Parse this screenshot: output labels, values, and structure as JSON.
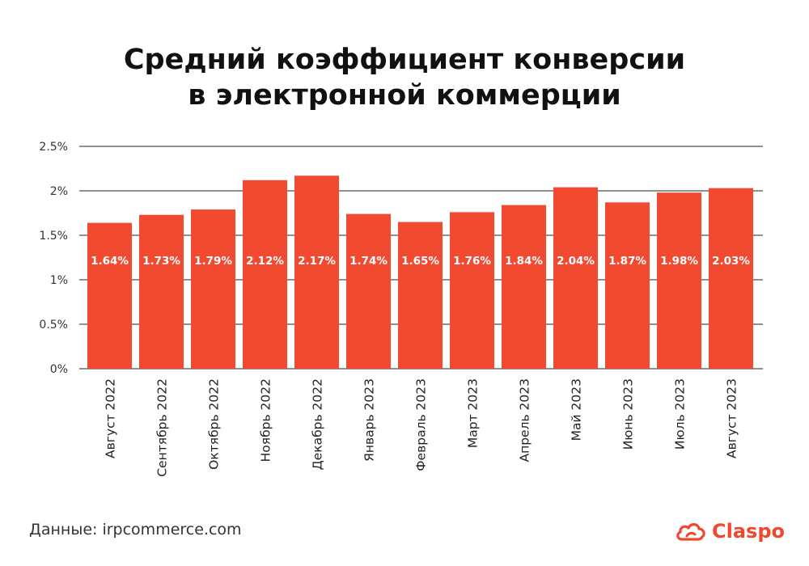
{
  "title_lines": [
    "Средний коэффициент конверсии",
    "в электронной коммерции"
  ],
  "source": "Данные: irpcommerce.com",
  "logo": {
    "text": "Claspo",
    "icon": "cloud-icon",
    "color": "#f1472f"
  },
  "colors": {
    "bar": "#f24a31",
    "label": "#ffffff",
    "grid": "#222222",
    "axis_text": "#333333"
  },
  "chart_data": {
    "type": "bar",
    "categories": [
      "Август 2022",
      "Сентябрь 2022",
      "Октябрь 2022",
      "Ноябрь 2022",
      "Декабрь 2022",
      "Январь 2023",
      "Февраль 2023",
      "Март 2023",
      "Апрель 2023",
      "Май 2023",
      "Июнь 2023",
      "Июль 2023",
      "Август 2023"
    ],
    "values": [
      1.64,
      1.73,
      1.79,
      2.12,
      2.17,
      1.74,
      1.65,
      1.76,
      1.84,
      2.04,
      1.87,
      1.98,
      2.03
    ],
    "data_labels": [
      "1.64%",
      "1.73%",
      "1.79%",
      "2.12%",
      "2.17%",
      "1.74%",
      "1.65%",
      "1.76%",
      "1.84%",
      "2.04%",
      "1.87%",
      "1.98%",
      "2.03%"
    ],
    "yticks": [
      0,
      0.5,
      1,
      1.5,
      2,
      2.5
    ],
    "ytick_labels": [
      "0%",
      "0.5%",
      "1%",
      "1.5%",
      "2%",
      "2.5%"
    ],
    "ylim": [
      0,
      2.5
    ],
    "grid": true,
    "legend": "none"
  }
}
